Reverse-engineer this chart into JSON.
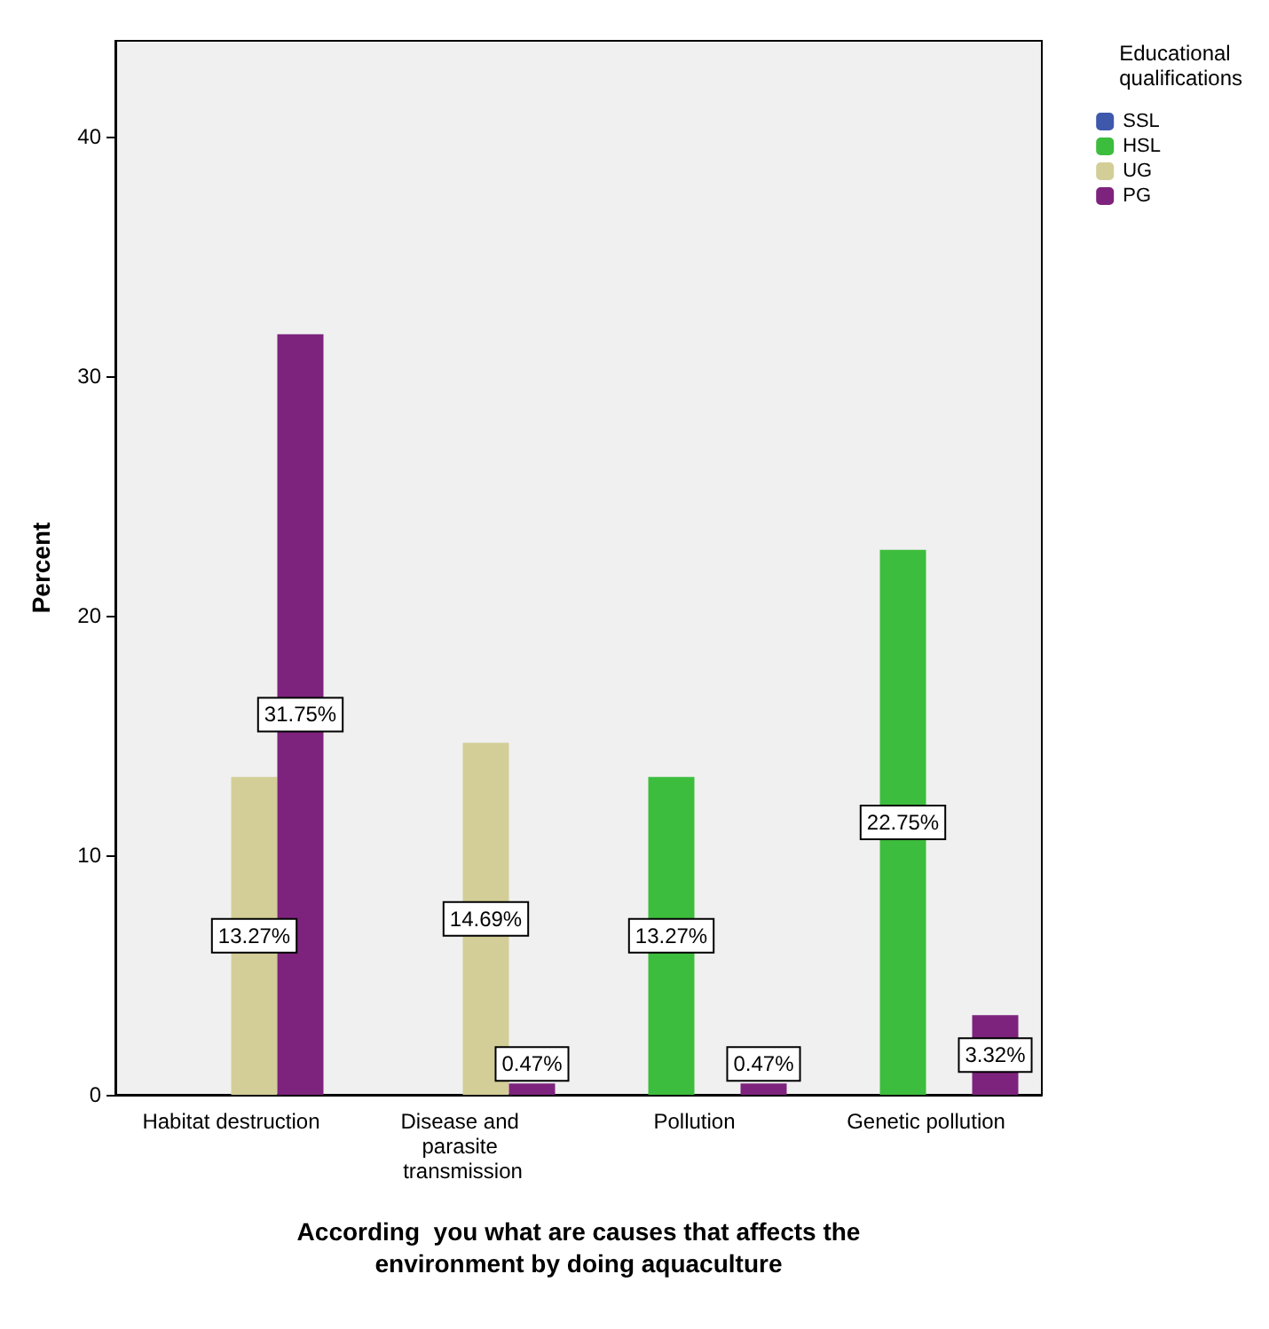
{
  "chart_data": {
    "type": "bar",
    "xlabel": "According  you what are causes that affects the\nenvironment by doing aquaculture",
    "ylabel": "Percent",
    "legend_title": "Educational\nqualifications",
    "legend": "top right",
    "grid": false,
    "categories": [
      "Habitat destruction",
      "Disease and parasite transmission",
      "Pollution",
      "Genetic pollution"
    ],
    "ylim": [
      0,
      44
    ],
    "yticks": [
      0,
      10,
      20,
      30,
      40
    ],
    "series": [
      {
        "name": "SSL",
        "color": "#3e58ac",
        "values": [
          null,
          null,
          null,
          null
        ],
        "value_labels": [
          null,
          null,
          null,
          null
        ]
      },
      {
        "name": "HSL",
        "color": "#3dbd3d",
        "values": [
          null,
          null,
          13.27,
          22.75
        ],
        "value_labels": [
          null,
          null,
          "13.27%",
          "22.75%"
        ]
      },
      {
        "name": "UG",
        "color": "#d3ce97",
        "values": [
          13.27,
          14.69,
          null,
          null
        ],
        "value_labels": [
          "13.27%",
          "14.69%",
          null,
          null
        ]
      },
      {
        "name": "PG",
        "color": "#7d237d",
        "values": [
          31.75,
          0.47,
          0.47,
          3.32
        ],
        "value_labels": [
          "31.75%",
          "0.47%",
          "0.47%",
          "3.32%"
        ]
      }
    ]
  }
}
